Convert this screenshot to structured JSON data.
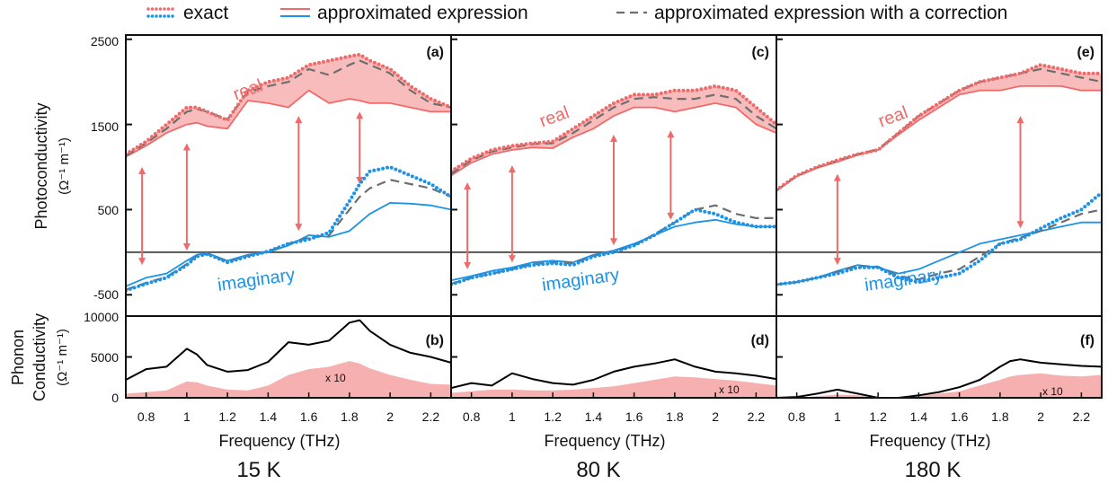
{
  "legend": {
    "items": [
      {
        "label": "exact",
        "style": "dotted",
        "colors": [
          "#f06a6a",
          "#1a93e8"
        ]
      },
      {
        "label": "approximated expression",
        "style": "solid",
        "colors": [
          "#f06a6a",
          "#1a93e8"
        ]
      },
      {
        "label": "approximated expression with a correction",
        "style": "dashed",
        "colors": [
          "#666666"
        ]
      }
    ]
  },
  "colors": {
    "real": "#f06a6a",
    "imaginary": "#1a93e8",
    "correction": "#6e6e6e",
    "fill": "#f7b0b0",
    "arrow": "#f06a6a",
    "phonon": "#000000",
    "frame": "#111111"
  },
  "axes": {
    "top_ylabel": "Photoconductivity",
    "top_yunit": "(Ω⁻¹ m⁻¹)",
    "bottom_ylabel_1": "Phonon",
    "bottom_ylabel_2": "Conductivity",
    "bottom_yunit": "(Ω⁻¹ m⁻¹)",
    "xlabel": "Frequency (THz)",
    "top_yticks": [
      "2500",
      "1500",
      "500",
      "-500"
    ],
    "bottom_yticks": [
      "10000",
      "5000",
      "0"
    ]
  },
  "chart_data": [
    {
      "type": "line",
      "panel": "(a)",
      "temperature": "15 K",
      "xlim": [
        0.7,
        2.3
      ],
      "ylim": [
        -750,
        2550
      ],
      "xticks": [
        "0.8",
        "1",
        "1.2",
        "1.4",
        "1.6",
        "1.8",
        "2",
        "2.2"
      ],
      "labels": {
        "real": "real",
        "imaginary": "imaginary"
      },
      "x": [
        0.7,
        0.8,
        0.9,
        1.0,
        1.05,
        1.1,
        1.2,
        1.3,
        1.4,
        1.5,
        1.6,
        1.7,
        1.8,
        1.85,
        1.9,
        2.0,
        2.1,
        2.2,
        2.3
      ],
      "series": [
        {
          "name": "exact",
          "part": "real",
          "style": "dotted",
          "values": [
            1150,
            1300,
            1500,
            1700,
            1700,
            1650,
            1550,
            1900,
            2000,
            2050,
            2200,
            2250,
            2300,
            2320,
            2250,
            2150,
            1950,
            1800,
            1700
          ]
        },
        {
          "name": "approximated expression",
          "part": "real",
          "style": "solid",
          "values": [
            1120,
            1250,
            1400,
            1500,
            1520,
            1480,
            1450,
            1780,
            1750,
            1700,
            1900,
            1750,
            1800,
            1780,
            1750,
            1750,
            1700,
            1650,
            1650
          ]
        },
        {
          "name": "approximated expression with a correction",
          "part": "real",
          "style": "dashed",
          "values": [
            1130,
            1280,
            1450,
            1650,
            1680,
            1650,
            1560,
            1880,
            1950,
            2000,
            2150,
            2080,
            2200,
            2250,
            2200,
            2100,
            1900,
            1750,
            1700
          ]
        },
        {
          "name": "exact",
          "part": "imaginary",
          "style": "dotted",
          "values": [
            -450,
            -370,
            -300,
            -150,
            -50,
            -20,
            -120,
            -50,
            10,
            100,
            150,
            230,
            600,
            800,
            950,
            1000,
            900,
            800,
            650
          ]
        },
        {
          "name": "approximated expression",
          "part": "imaginary",
          "style": "solid",
          "values": [
            -400,
            -300,
            -250,
            -100,
            -30,
            -10,
            -100,
            -30,
            0,
            80,
            200,
            180,
            250,
            350,
            450,
            580,
            570,
            550,
            500
          ]
        },
        {
          "name": "approximated expression with a correction",
          "part": "imaginary",
          "style": "dashed",
          "values": [
            -440,
            -360,
            -290,
            -140,
            -40,
            -20,
            -110,
            -40,
            10,
            100,
            170,
            200,
            500,
            650,
            750,
            850,
            800,
            750,
            650
          ]
        }
      ],
      "arrows": [
        {
          "x": 0.78,
          "from": 1000,
          "to": -150
        },
        {
          "x": 1.0,
          "from": 1280,
          "to": 20
        },
        {
          "x": 1.55,
          "from": 1600,
          "to": 250
        },
        {
          "x": 1.85,
          "from": 1650,
          "to": 800
        }
      ]
    },
    {
      "type": "area",
      "panel": "(b)",
      "temperature": "15 K",
      "xlim": [
        0.7,
        2.3
      ],
      "ylim": [
        0,
        10000
      ],
      "xticks": [
        "0.8",
        "1",
        "1.2",
        "1.4",
        "1.6",
        "1.8",
        "2",
        "2.2"
      ],
      "annotation": "x 10",
      "x": [
        0.7,
        0.8,
        0.9,
        1.0,
        1.05,
        1.1,
        1.2,
        1.3,
        1.4,
        1.5,
        1.6,
        1.7,
        1.8,
        1.85,
        1.9,
        2.0,
        2.1,
        2.2,
        2.3
      ],
      "series": [
        {
          "name": "phonon",
          "style": "line",
          "values": [
            2200,
            3500,
            3800,
            6000,
            5300,
            4000,
            3200,
            3400,
            4400,
            6800,
            6500,
            7000,
            9200,
            9500,
            8200,
            6500,
            5500,
            5000,
            4300
          ]
        },
        {
          "name": "x 10",
          "style": "filled",
          "values": [
            500,
            700,
            900,
            2000,
            1900,
            1500,
            1000,
            900,
            1500,
            2800,
            3500,
            3800,
            4500,
            4200,
            3600,
            2800,
            2200,
            1700,
            1600
          ]
        }
      ]
    },
    {
      "type": "line",
      "panel": "(c)",
      "temperature": "80 K",
      "xlim": [
        0.7,
        2.3
      ],
      "ylim": [
        -750,
        2550
      ],
      "xticks": [
        "0.8",
        "1",
        "1.2",
        "1.4",
        "1.6",
        "1.8",
        "2",
        "2.2"
      ],
      "labels": {
        "real": "real",
        "imaginary": "imaginary"
      },
      "x": [
        0.7,
        0.8,
        0.9,
        1.0,
        1.1,
        1.2,
        1.3,
        1.4,
        1.5,
        1.6,
        1.7,
        1.8,
        1.9,
        2.0,
        2.1,
        2.2,
        2.3
      ],
      "series": [
        {
          "name": "exact",
          "part": "real",
          "style": "dotted",
          "values": [
            950,
            1100,
            1200,
            1250,
            1280,
            1300,
            1450,
            1600,
            1750,
            1850,
            1850,
            1900,
            1900,
            1950,
            1900,
            1700,
            1500
          ]
        },
        {
          "name": "approximated expression",
          "part": "real",
          "style": "solid",
          "values": [
            900,
            1050,
            1150,
            1200,
            1230,
            1220,
            1350,
            1450,
            1600,
            1700,
            1700,
            1650,
            1700,
            1750,
            1700,
            1500,
            1400
          ]
        },
        {
          "name": "approximated expression with a correction",
          "part": "real",
          "style": "dashed",
          "values": [
            920,
            1080,
            1180,
            1230,
            1270,
            1280,
            1400,
            1550,
            1700,
            1800,
            1820,
            1800,
            1800,
            1850,
            1800,
            1600,
            1450
          ]
        },
        {
          "name": "exact",
          "part": "imaginary",
          "style": "dotted",
          "values": [
            -380,
            -300,
            -250,
            -200,
            -150,
            -130,
            -150,
            -50,
            0,
            80,
            200,
            350,
            500,
            450,
            350,
            300,
            300
          ]
        },
        {
          "name": "approximated expression",
          "part": "imaginary",
          "style": "solid",
          "values": [
            -330,
            -280,
            -220,
            -180,
            -120,
            -100,
            -120,
            -30,
            20,
            100,
            200,
            300,
            350,
            380,
            330,
            300,
            300
          ]
        },
        {
          "name": "approximated expression with a correction",
          "part": "imaginary",
          "style": "dashed",
          "values": [
            -370,
            -300,
            -250,
            -200,
            -140,
            -120,
            -130,
            -40,
            10,
            80,
            210,
            350,
            500,
            550,
            450,
            400,
            400
          ]
        }
      ],
      "arrows": [
        {
          "x": 0.78,
          "from": 820,
          "to": -200
        },
        {
          "x": 1.0,
          "from": 1020,
          "to": -120
        },
        {
          "x": 1.5,
          "from": 1380,
          "to": 80
        },
        {
          "x": 1.78,
          "from": 1430,
          "to": 380
        }
      ]
    },
    {
      "type": "area",
      "panel": "(d)",
      "temperature": "80 K",
      "xlim": [
        0.7,
        2.3
      ],
      "ylim": [
        0,
        10000
      ],
      "xticks": [
        "0.8",
        "1",
        "1.2",
        "1.4",
        "1.6",
        "1.8",
        "2",
        "2.2"
      ],
      "annotation": "x 10",
      "x": [
        0.7,
        0.8,
        0.9,
        1.0,
        1.1,
        1.2,
        1.3,
        1.4,
        1.5,
        1.6,
        1.7,
        1.8,
        1.9,
        2.0,
        2.1,
        2.2,
        2.3
      ],
      "series": [
        {
          "name": "phonon",
          "style": "line",
          "values": [
            1200,
            1800,
            1500,
            3000,
            2300,
            1800,
            1600,
            2200,
            3200,
            3800,
            4200,
            4700,
            3800,
            3200,
            3000,
            2700,
            2300
          ]
        },
        {
          "name": "x 10",
          "style": "filled",
          "values": [
            600,
            800,
            1000,
            1000,
            900,
            900,
            1000,
            1200,
            1400,
            1800,
            2200,
            2600,
            2500,
            2300,
            2100,
            1800,
            1500
          ]
        }
      ]
    },
    {
      "type": "line",
      "panel": "(e)",
      "temperature": "180 K",
      "xlim": [
        0.7,
        2.3
      ],
      "ylim": [
        -750,
        2550
      ],
      "xticks": [
        "0.8",
        "1",
        "1.2",
        "1.4",
        "1.6",
        "1.8",
        "2",
        "2.2"
      ],
      "labels": {
        "real": "real",
        "imaginary": "imaginary"
      },
      "x": [
        0.7,
        0.8,
        0.9,
        1.0,
        1.1,
        1.2,
        1.3,
        1.4,
        1.5,
        1.6,
        1.7,
        1.8,
        1.9,
        2.0,
        2.1,
        2.2,
        2.3
      ],
      "series": [
        {
          "name": "exact",
          "part": "real",
          "style": "dotted",
          "values": [
            730,
            900,
            1000,
            1080,
            1150,
            1200,
            1400,
            1600,
            1750,
            1900,
            2000,
            2050,
            2100,
            2200,
            2150,
            2100,
            2100
          ]
        },
        {
          "name": "approximated expression",
          "part": "real",
          "style": "solid",
          "values": [
            720,
            890,
            990,
            1060,
            1140,
            1200,
            1380,
            1550,
            1700,
            1850,
            1900,
            1900,
            1950,
            1950,
            1950,
            1900,
            1900
          ]
        },
        {
          "name": "approximated expression with a correction",
          "part": "real",
          "style": "dashed",
          "values": [
            725,
            895,
            995,
            1075,
            1150,
            1210,
            1400,
            1600,
            1750,
            1900,
            2000,
            2050,
            2100,
            2150,
            2100,
            2050,
            2000
          ]
        },
        {
          "name": "exact",
          "part": "imaginary",
          "style": "dotted",
          "values": [
            -380,
            -350,
            -300,
            -250,
            -180,
            -180,
            -300,
            -350,
            -300,
            -250,
            -100,
            100,
            150,
            280,
            400,
            500,
            700
          ]
        },
        {
          "name": "approximated expression",
          "part": "imaginary",
          "style": "solid",
          "values": [
            -380,
            -350,
            -300,
            -220,
            -150,
            -180,
            -250,
            -200,
            -100,
            0,
            100,
            150,
            200,
            250,
            300,
            350,
            350
          ]
        },
        {
          "name": "approximated expression with a correction",
          "part": "imaginary",
          "style": "dashed",
          "values": [
            -380,
            -350,
            -300,
            -230,
            -160,
            -170,
            -280,
            -320,
            -250,
            -200,
            -50,
            100,
            170,
            250,
            350,
            450,
            500
          ]
        }
      ],
      "arrows": [
        {
          "x": 1.0,
          "from": 920,
          "to": -150
        },
        {
          "x": 1.9,
          "from": 1600,
          "to": 280
        }
      ]
    },
    {
      "type": "area",
      "panel": "(f)",
      "temperature": "180 K",
      "xlim": [
        0.7,
        2.3
      ],
      "ylim": [
        0,
        10000
      ],
      "xticks": [
        "0.8",
        "1",
        "1.2",
        "1.4",
        "1.6",
        "1.8",
        "2",
        "2.2"
      ],
      "annotation": "x 10",
      "x": [
        0.7,
        0.8,
        0.9,
        1.0,
        1.1,
        1.2,
        1.3,
        1.4,
        1.5,
        1.6,
        1.7,
        1.8,
        1.85,
        1.9,
        2.0,
        2.1,
        2.2,
        2.3
      ],
      "series": [
        {
          "name": "phonon",
          "style": "line",
          "values": [
            0,
            100,
            500,
            1000,
            500,
            0,
            0,
            300,
            700,
            1300,
            2200,
            3800,
            4500,
            4700,
            4300,
            4100,
            3900,
            3800
          ]
        },
        {
          "name": "x 10",
          "style": "filled",
          "values": [
            0,
            0,
            200,
            400,
            300,
            0,
            0,
            200,
            500,
            800,
            1500,
            2200,
            2600,
            2800,
            3000,
            2700,
            2600,
            2800
          ]
        }
      ]
    }
  ]
}
